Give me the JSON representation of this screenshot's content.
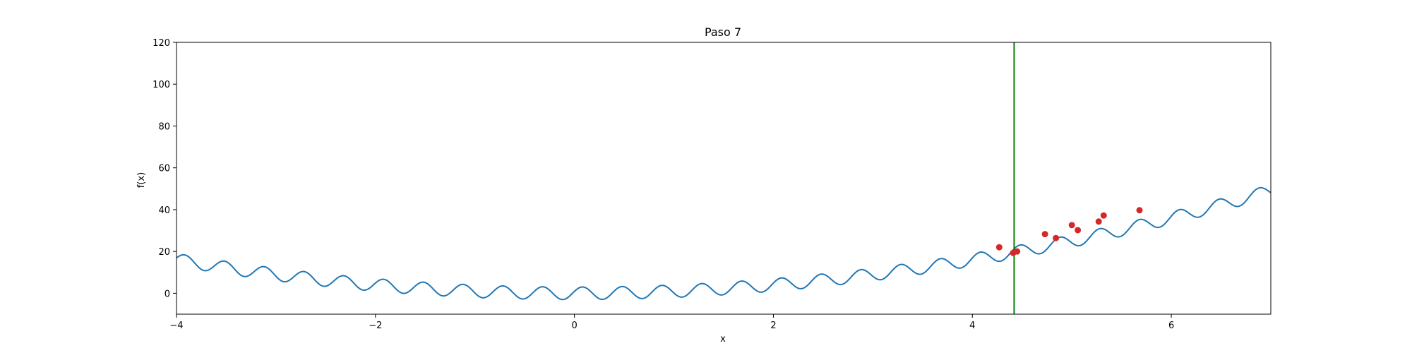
{
  "chart_data": {
    "type": "line",
    "title": "Paso 7",
    "xlabel": "x",
    "ylabel": "f(x)",
    "xlim": [
      -4,
      7
    ],
    "ylim": [
      -10,
      120
    ],
    "xticks": [
      -4,
      -2,
      0,
      2,
      4,
      6
    ],
    "yticks": [
      0,
      20,
      40,
      60,
      80,
      100,
      120
    ],
    "grid": false,
    "series": [
      {
        "kind": "line",
        "color": "#1f77b4",
        "function": "x^2 + 3*sin(5*pi*x + 0.3)"
      }
    ],
    "points": {
      "color": "#d62728",
      "x": [
        4.27,
        4.41,
        4.45,
        4.73,
        4.84,
        5.0,
        5.06,
        5.27,
        5.32,
        5.68
      ],
      "y": [
        22.0,
        19.3,
        20.0,
        28.3,
        26.4,
        32.6,
        30.2,
        34.3,
        37.2,
        39.7
      ]
    },
    "vline": {
      "x": 4.42,
      "color": "#008000"
    }
  }
}
